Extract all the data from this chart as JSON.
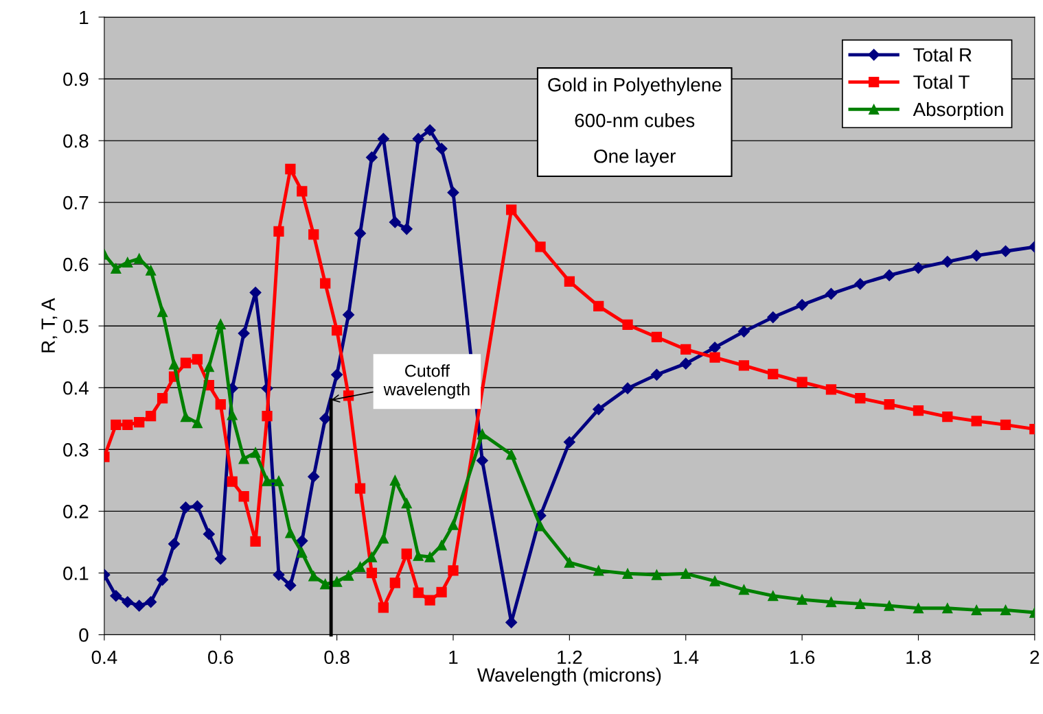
{
  "chart_data": {
    "type": "line",
    "xlabel": "Wavelength (microns)",
    "ylabel": "R, T, A",
    "x": [
      0.4,
      0.42,
      0.44,
      0.46,
      0.48,
      0.5,
      0.52,
      0.54,
      0.56,
      0.58,
      0.6,
      0.62,
      0.64,
      0.66,
      0.68,
      0.7,
      0.72,
      0.74,
      0.76,
      0.78,
      0.8,
      0.82,
      0.84,
      0.86,
      0.88,
      0.9,
      0.92,
      0.94,
      0.96,
      0.98,
      1.0,
      1.05,
      1.1,
      1.15,
      1.2,
      1.25,
      1.3,
      1.35,
      1.4,
      1.45,
      1.5,
      1.55,
      1.6,
      1.65,
      1.7,
      1.75,
      1.8,
      1.85,
      1.9,
      1.95,
      2.0
    ],
    "series": [
      {
        "name": "Total R",
        "color": "#000080",
        "marker": "diamond",
        "values": [
          0.097,
          0.063,
          0.053,
          0.047,
          0.053,
          0.089,
          0.147,
          0.206,
          0.208,
          0.163,
          0.123,
          0.399,
          0.488,
          0.554,
          0.399,
          0.097,
          0.08,
          0.152,
          0.256,
          0.35,
          0.421,
          0.518,
          0.65,
          0.773,
          0.803,
          0.668,
          0.657,
          0.803,
          0.817,
          0.787,
          0.716,
          0.282,
          0.02,
          0.193,
          0.312,
          0.365,
          0.399,
          0.421,
          0.439,
          0.465,
          0.491,
          0.514,
          0.534,
          0.552,
          0.568,
          0.582,
          0.594,
          0.604,
          0.614,
          0.621,
          0.628
        ]
      },
      {
        "name": "Total T",
        "color": "#ff0000",
        "marker": "square",
        "values": [
          0.288,
          0.34,
          0.34,
          0.344,
          0.354,
          0.383,
          0.418,
          0.44,
          0.446,
          0.404,
          0.373,
          0.248,
          0.224,
          0.151,
          0.354,
          0.653,
          0.754,
          0.718,
          0.648,
          0.569,
          0.493,
          0.387,
          0.237,
          0.1,
          0.044,
          0.084,
          0.131,
          0.068,
          0.056,
          0.069,
          0.104,
          null,
          0.688,
          0.628,
          0.572,
          0.532,
          0.502,
          0.482,
          0.462,
          0.449,
          0.436,
          0.422,
          0.409,
          0.397,
          0.383,
          0.373,
          0.363,
          0.353,
          0.346,
          0.34,
          0.333
        ]
      },
      {
        "name": "Absorption",
        "color": "#008000",
        "marker": "triangle",
        "values": [
          0.616,
          0.593,
          0.603,
          0.609,
          0.59,
          0.523,
          0.438,
          0.353,
          0.343,
          0.434,
          0.503,
          0.356,
          0.285,
          0.295,
          0.249,
          0.249,
          0.165,
          0.133,
          0.095,
          0.082,
          0.086,
          0.096,
          0.11,
          0.126,
          0.156,
          0.25,
          0.213,
          0.128,
          0.126,
          0.145,
          0.178,
          0.325,
          0.292,
          0.176,
          0.117,
          0.104,
          0.099,
          0.097,
          0.099,
          0.087,
          0.073,
          0.063,
          0.057,
          0.053,
          0.05,
          0.047,
          0.043,
          0.043,
          0.04,
          0.04,
          0.036
        ]
      }
    ],
    "xlim": [
      0.4,
      2
    ],
    "xticks": [
      0.4,
      0.6,
      0.8,
      1,
      1.2,
      1.4,
      1.6,
      1.8,
      2
    ],
    "ylim": [
      0,
      1
    ],
    "yticks": [
      0,
      0.1,
      0.2,
      0.3,
      0.4,
      0.5,
      0.6,
      0.7,
      0.8,
      0.9,
      1
    ],
    "grid": "y",
    "legend": "top right",
    "line_style": "solid",
    "ref_lines": [
      {
        "axis": "x",
        "value": 0.79,
        "color": "#000000"
      }
    ],
    "annotations": [
      "Gold in Polyethylene",
      "600-nm cubes",
      "One layer",
      {
        "text": "Cutoff wavelength",
        "x": 0.79,
        "y": 0.38
      }
    ]
  }
}
